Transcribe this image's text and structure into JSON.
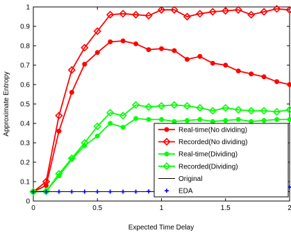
{
  "chart_data": {
    "type": "line",
    "xlabel": "Expected Time Delay",
    "ylabel": "Approximate Entropy",
    "xlim": [
      0,
      2
    ],
    "ylim": [
      0,
      1
    ],
    "xticks": [
      "0",
      "0.5",
      "1",
      "1.5",
      "2"
    ],
    "yticks": [
      "0",
      "0.1",
      "0.2",
      "0.3",
      "0.4",
      "0.5",
      "0.6",
      "0.7",
      "0.8",
      "0.9",
      "1"
    ],
    "x": [
      0.0,
      0.1,
      0.2,
      0.3,
      0.4,
      0.5,
      0.6,
      0.7,
      0.8,
      0.9,
      1.0,
      1.1,
      1.2,
      1.3,
      1.4,
      1.5,
      1.6,
      1.7,
      1.8,
      1.9,
      2.0
    ],
    "grid": false,
    "legend_position": "lower-right",
    "series": [
      {
        "name": "Real-time(No dividing)",
        "color": "#ff0000",
        "marker": "circle",
        "values": [
          0.048,
          0.08,
          0.36,
          0.56,
          0.705,
          0.765,
          0.82,
          0.825,
          0.81,
          0.78,
          0.785,
          0.775,
          0.73,
          0.745,
          0.71,
          0.7,
          0.67,
          0.655,
          0.64,
          0.615,
          0.6
        ]
      },
      {
        "name": "Recorded(No dividing)",
        "color": "#ff0000",
        "marker": "diamond",
        "values": [
          0.048,
          0.1,
          0.44,
          0.675,
          0.79,
          0.875,
          0.96,
          0.965,
          0.96,
          0.955,
          0.985,
          0.985,
          0.95,
          0.965,
          0.975,
          0.98,
          0.985,
          0.96,
          0.975,
          0.99,
          0.985
        ]
      },
      {
        "name": "Real-time(Dividing)",
        "color": "#00ff00",
        "marker": "circle",
        "values": [
          0.048,
          0.05,
          0.13,
          0.215,
          0.285,
          0.335,
          0.4,
          0.38,
          0.425,
          0.42,
          0.42,
          0.41,
          0.415,
          0.42,
          0.41,
          0.415,
          0.42,
          0.41,
          0.415,
          0.42,
          0.42
        ]
      },
      {
        "name": "Recorded(Dividing)",
        "color": "#00ff00",
        "marker": "diamond",
        "values": [
          0.048,
          0.05,
          0.14,
          0.22,
          0.3,
          0.385,
          0.455,
          0.44,
          0.495,
          0.485,
          0.49,
          0.495,
          0.49,
          0.48,
          0.465,
          0.48,
          0.47,
          0.465,
          0.465,
          0.46,
          0.47
        ]
      },
      {
        "name": "Original",
        "color": "#000000",
        "marker": "none",
        "values": [
          0.048,
          0.048,
          0.048,
          0.048,
          0.048,
          0.048,
          0.048,
          0.048,
          0.048,
          0.048,
          0.048,
          0.048,
          0.048,
          0.048,
          0.048,
          0.048,
          0.048,
          0.048,
          0.048,
          0.048,
          0.048
        ]
      },
      {
        "name": "EDA",
        "color": "#0000ff",
        "marker": "plus",
        "values": [
          0.048,
          0.048,
          0.048,
          0.048,
          0.048,
          0.048,
          0.048,
          0.048,
          0.048,
          0.05,
          0.052,
          0.055,
          0.058,
          0.06,
          0.062,
          0.065,
          0.065,
          0.068,
          0.07,
          0.07,
          0.072
        ]
      }
    ]
  }
}
